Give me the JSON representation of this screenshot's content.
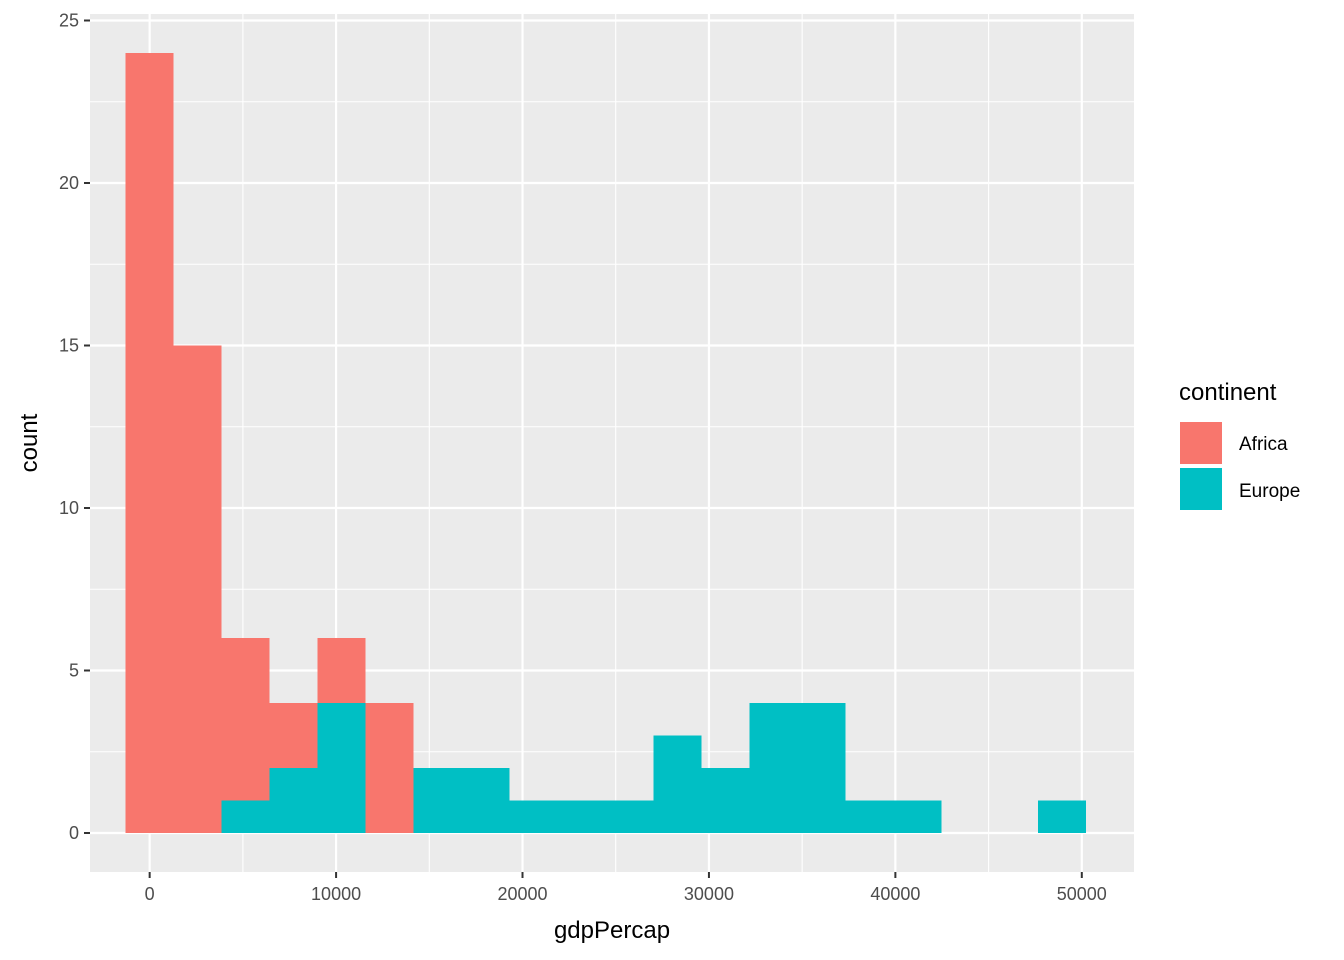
{
  "chart_data": {
    "type": "bar",
    "subtype": "stacked-histogram",
    "xlabel": "gdpPercap",
    "ylabel": "count",
    "xlim": [
      -3200,
      52800
    ],
    "ylim": [
      -1.2,
      25.2
    ],
    "x_ticks": [
      0,
      10000,
      20000,
      30000,
      40000,
      50000
    ],
    "x_tick_labels": [
      "0",
      "10000",
      "20000",
      "30000",
      "40000",
      "50000"
    ],
    "y_ticks": [
      0,
      5,
      10,
      15,
      20,
      25
    ],
    "y_tick_labels": [
      "0",
      "5",
      "10",
      "15",
      "20",
      "25"
    ],
    "bin_width": 2575,
    "bin_centers": [
      0,
      2575,
      5150,
      7725,
      10300,
      12875,
      15450,
      18025,
      20600,
      23175,
      25750,
      28325,
      30900,
      33475,
      36050,
      38625,
      41200,
      43775,
      46350,
      48925
    ],
    "series": [
      {
        "name": "Europe",
        "color": "#00BFC4",
        "values": [
          0,
          0,
          1,
          2,
          4,
          0,
          2,
          2,
          1,
          1,
          1,
          3,
          2,
          4,
          4,
          1,
          1,
          0,
          0,
          1
        ]
      },
      {
        "name": "Africa",
        "color": "#F8766D",
        "values": [
          24,
          15,
          5,
          2,
          2,
          4,
          0,
          0,
          0,
          0,
          0,
          0,
          0,
          0,
          0,
          0,
          0,
          0,
          0,
          0
        ]
      }
    ],
    "legend": {
      "title": "continent",
      "position": "right",
      "items": [
        {
          "label": "Africa",
          "color": "#F8766D"
        },
        {
          "label": "Europe",
          "color": "#00BFC4"
        }
      ]
    },
    "panel_background": "#EBEBEB",
    "grid": true
  }
}
